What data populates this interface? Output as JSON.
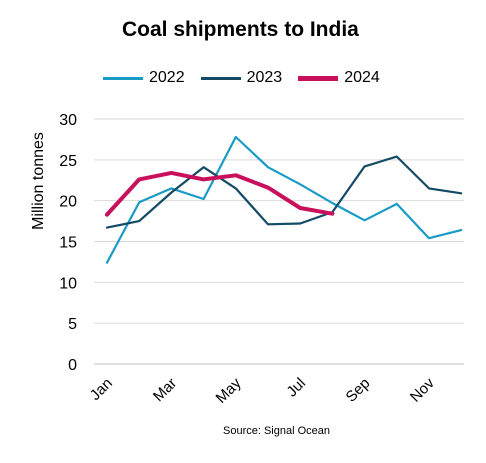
{
  "chart_data": {
    "type": "line",
    "title": "Coal shipments to India",
    "ylabel": "Million tonnes",
    "xlabel": "",
    "ylim": [
      0,
      30
    ],
    "yticks": [
      0,
      5,
      10,
      15,
      20,
      25,
      30
    ],
    "grid": "horizontal",
    "legend_position": "top",
    "months": [
      "Jan",
      "Feb",
      "Mar",
      "Apr",
      "May",
      "Jun",
      "Jul",
      "Aug",
      "Sep",
      "Oct",
      "Nov",
      "Dec"
    ],
    "tick_labels": [
      {
        "month": 1,
        "label": "Jan"
      },
      {
        "month": 3,
        "label": "Mar"
      },
      {
        "month": 5,
        "label": "May"
      },
      {
        "month": 7,
        "label": "Jul"
      },
      {
        "month": 9,
        "label": "Sep"
      },
      {
        "month": 11,
        "label": "Nov"
      }
    ],
    "series": [
      {
        "name": "2022",
        "color": "#1a9bc7",
        "values": [
          12.4,
          19.8,
          21.5,
          20.2,
          27.8,
          24.1,
          22.0,
          19.7,
          17.6,
          19.6,
          15.4,
          16.4
        ]
      },
      {
        "name": "2023",
        "color": "#134a66",
        "values": [
          16.7,
          17.5,
          21.0,
          24.1,
          21.5,
          17.1,
          17.2,
          18.6,
          24.2,
          25.4,
          21.5,
          20.9
        ]
      },
      {
        "name": "2024",
        "color": "#c8105c",
        "values": [
          18.3,
          22.6,
          23.4,
          22.6,
          23.1,
          21.6,
          19.1,
          18.4
        ]
      }
    ],
    "source": "Source: Signal Ocean"
  }
}
